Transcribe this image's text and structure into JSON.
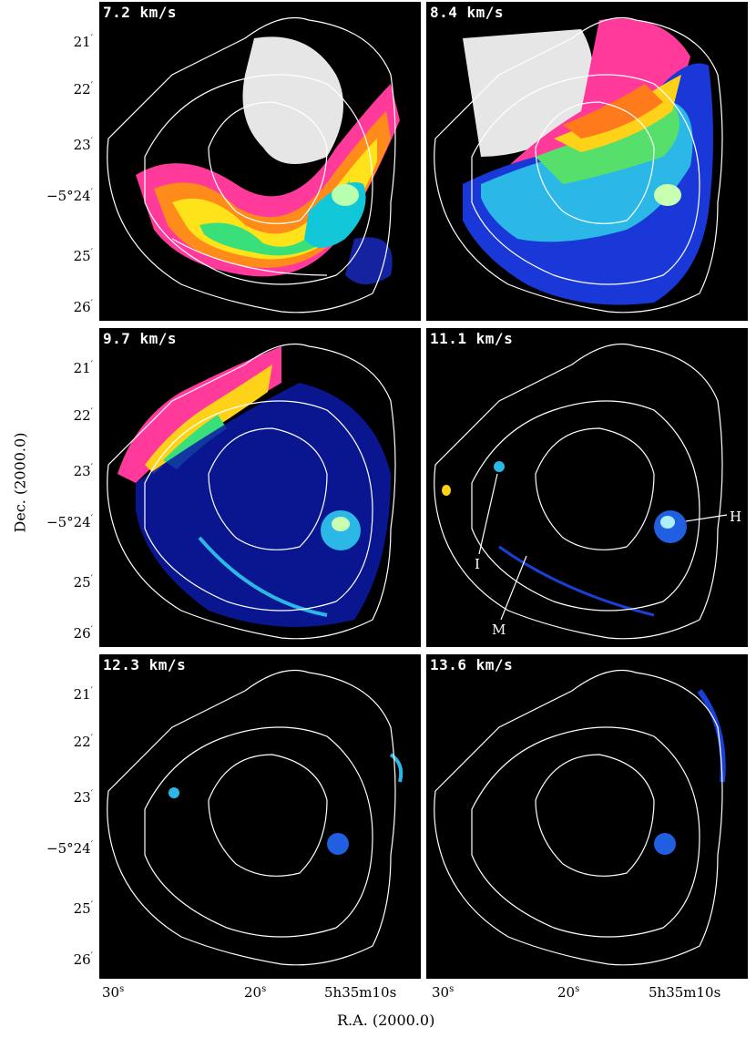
{
  "axes": {
    "ylabel": "Dec. (2000.0)",
    "xlabel": "R.A. (2000.0)",
    "y_ticks": [
      {
        "main": "21",
        "sup": "′"
      },
      {
        "main": "22",
        "sup": "′"
      },
      {
        "main": "23",
        "sup": "′"
      },
      {
        "main": "−5°24",
        "sup": "′"
      },
      {
        "main": "25",
        "sup": "′"
      },
      {
        "main": "26",
        "sup": "′"
      }
    ],
    "x_ticks": [
      {
        "main": "30",
        "sup": "s"
      },
      {
        "main": "20",
        "sup": "s"
      },
      {
        "main": "5h35m10s",
        "sup": ""
      }
    ]
  },
  "panels": [
    {
      "label": "7.2 km/s"
    },
    {
      "label": "8.4 km/s"
    },
    {
      "label": "9.7 km/s"
    },
    {
      "label": "11.1 km/s"
    },
    {
      "label": "12.3 km/s"
    },
    {
      "label": "13.6 km/s"
    }
  ],
  "annotations": {
    "h": "H",
    "i": "I",
    "m": "M"
  }
}
